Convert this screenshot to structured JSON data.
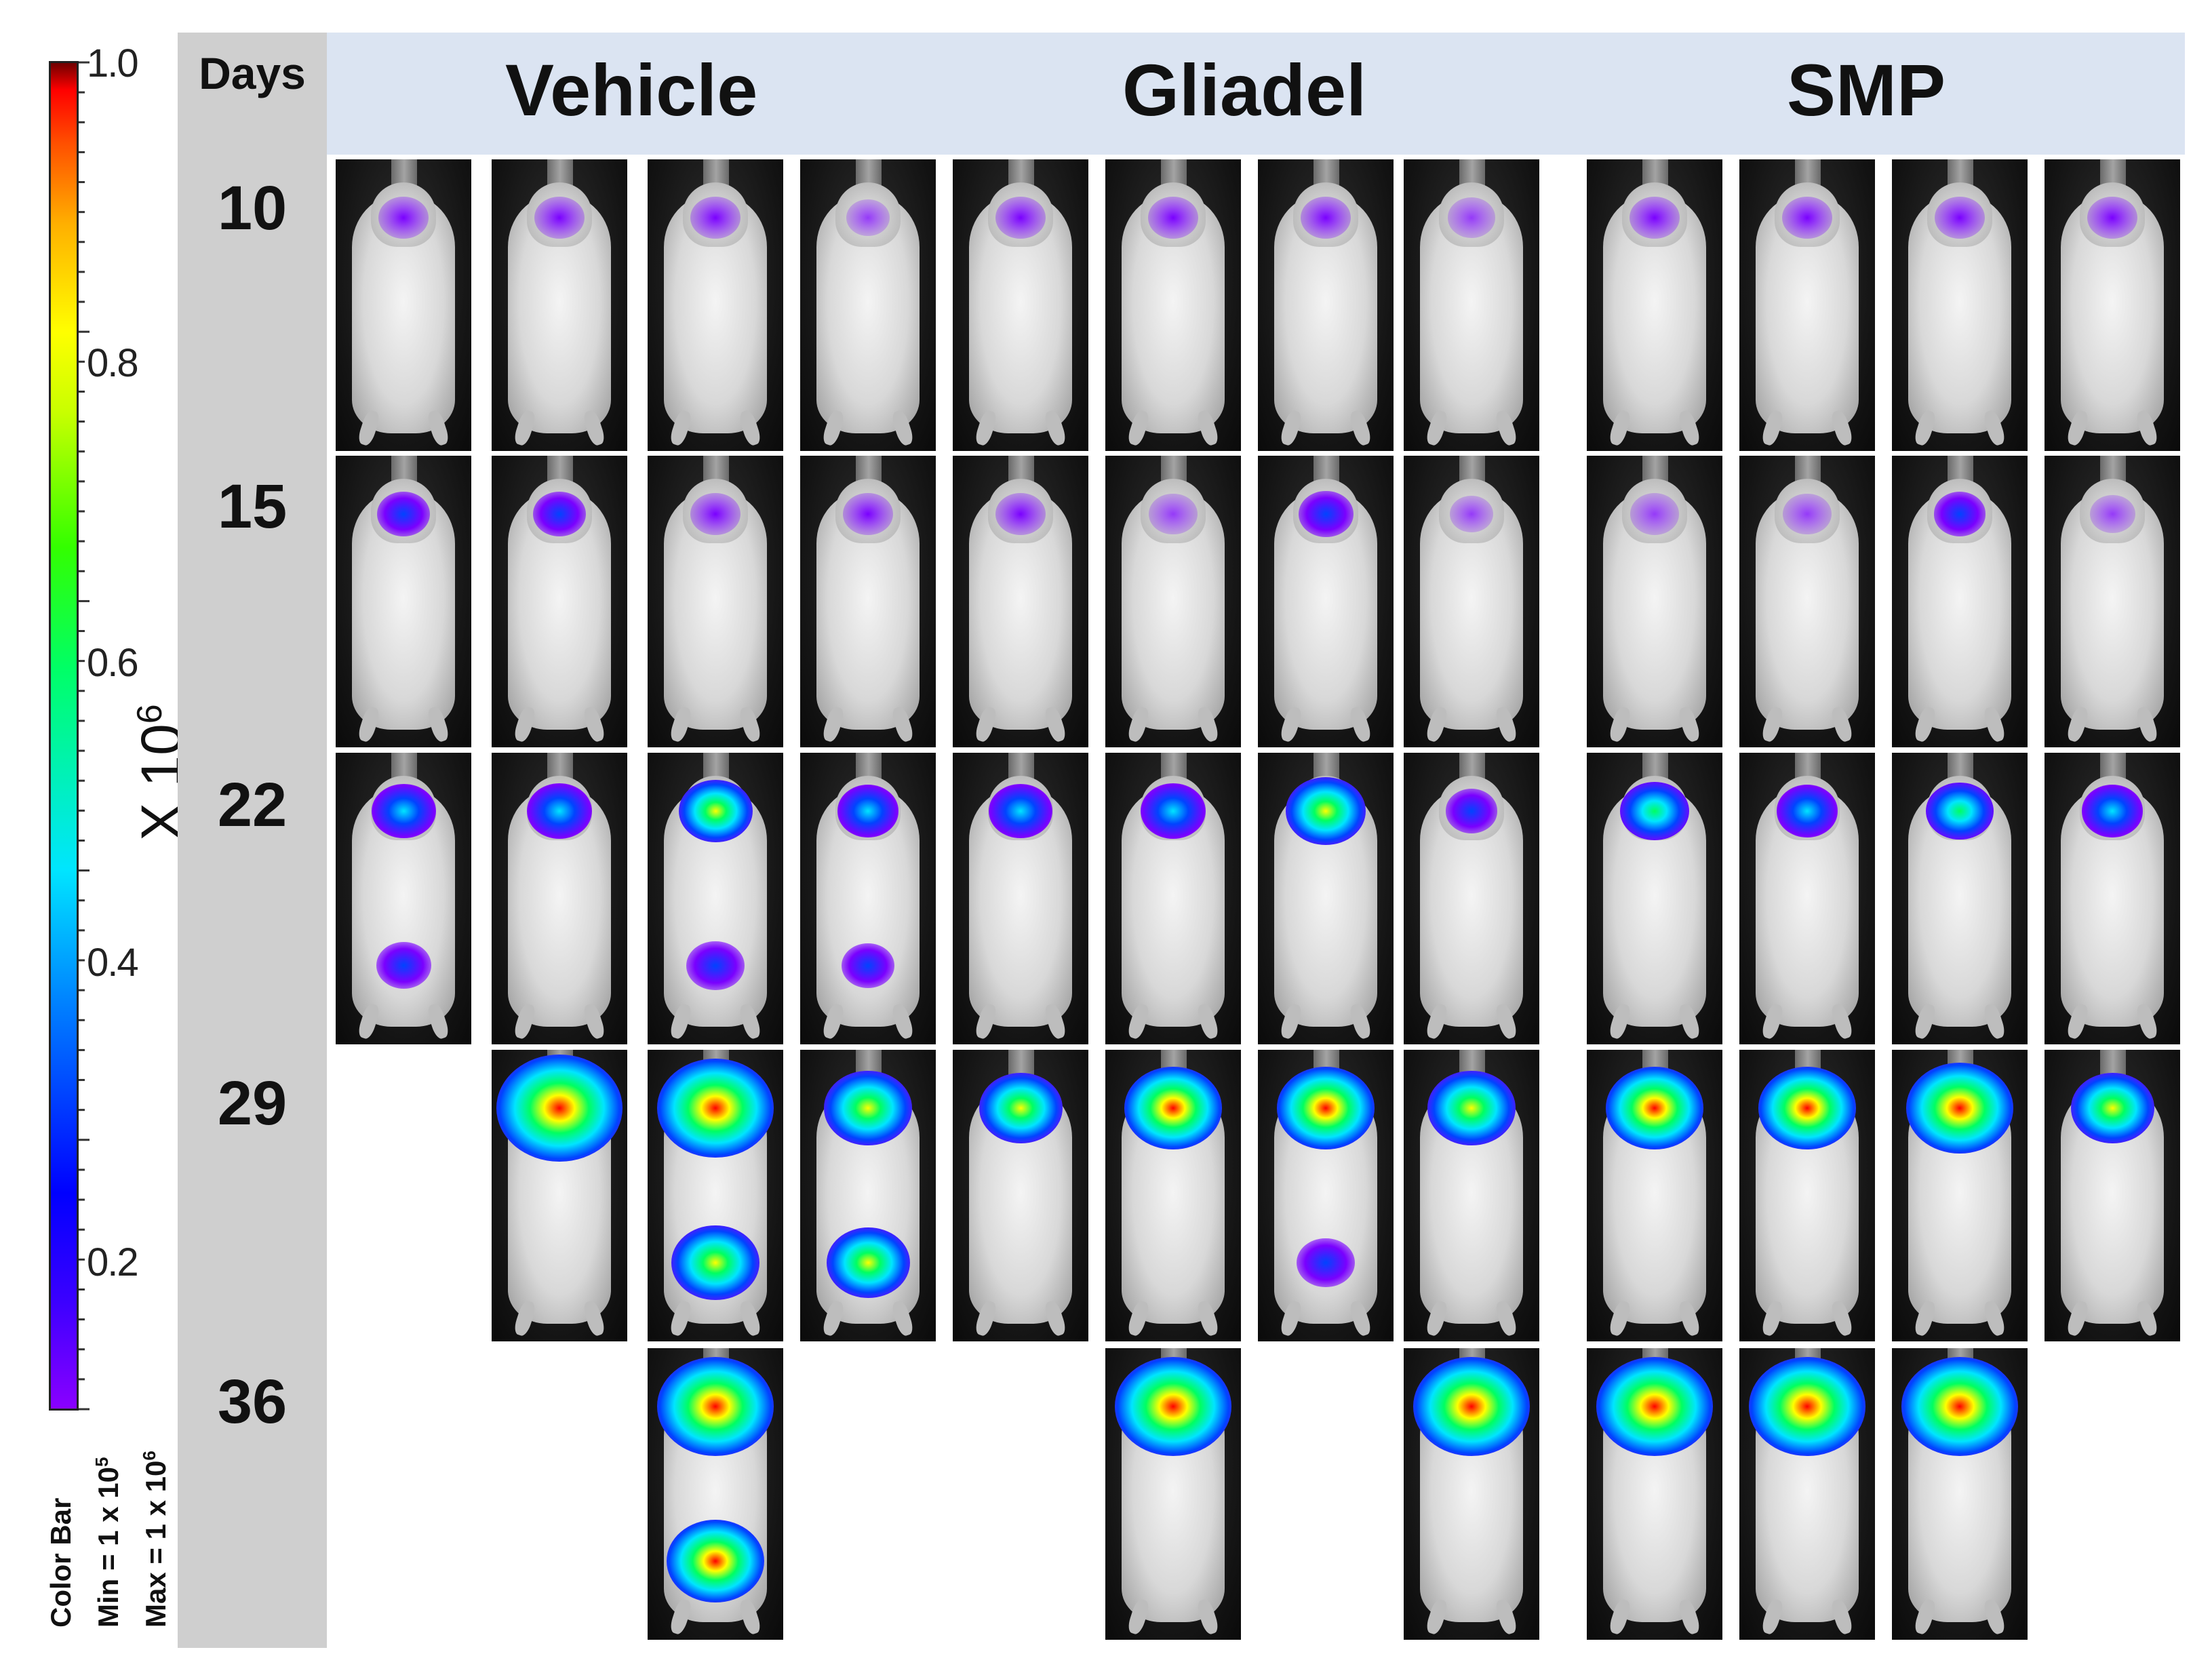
{
  "colorbar": {
    "ticks": [
      "1.0",
      "0.8",
      "0.6",
      "0.4",
      "0.2"
    ],
    "unit": "X 10",
    "unit_exp": "6",
    "caption_line1": "Color  Bar",
    "caption_line2": "Min = 1 x 10",
    "caption_line2_exp": "5",
    "caption_line3": "Max = 1 x 10",
    "caption_line3_exp": "6"
  },
  "header": {
    "days_label": "Days",
    "groups": [
      "Vehicle",
      "Gliadel",
      "SMP"
    ]
  },
  "rows": [
    {
      "day": "10",
      "signals": [
        1,
        1,
        1,
        0.3,
        1,
        1,
        1,
        0.7,
        1,
        1,
        1,
        1
      ]
    },
    {
      "day": "15",
      "signals": [
        1.3,
        1.3,
        1,
        1,
        1,
        0.8,
        1.5,
        0.3,
        0.9,
        0.8,
        1.2,
        0.5
      ]
    },
    {
      "day": "22",
      "signals": [
        2.5,
        2.6,
        3.5,
        2.2,
        2.4,
        2.6,
        4.2,
        1.2,
        3,
        2.2,
        2.8,
        2.2
      ]
    },
    {
      "day": "29",
      "signals": [
        null,
        9,
        8,
        5,
        4.5,
        6,
        6,
        5,
        6,
        6,
        7,
        4.5
      ]
    },
    {
      "day": "36",
      "signals": [
        null,
        null,
        8,
        null,
        null,
        8,
        null,
        8,
        8,
        8,
        8,
        null
      ]
    }
  ],
  "lower_body_signals": [
    {
      "row": 2,
      "col": 0,
      "level": 1.5
    },
    {
      "row": 2,
      "col": 2,
      "level": 1.8
    },
    {
      "row": 2,
      "col": 3,
      "level": 1.3
    },
    {
      "row": 3,
      "col": 2,
      "level": 5
    },
    {
      "row": 3,
      "col": 3,
      "level": 4.5
    },
    {
      "row": 3,
      "col": 6,
      "level": 1.8
    },
    {
      "row": 4,
      "col": 2,
      "level": 6
    }
  ]
}
